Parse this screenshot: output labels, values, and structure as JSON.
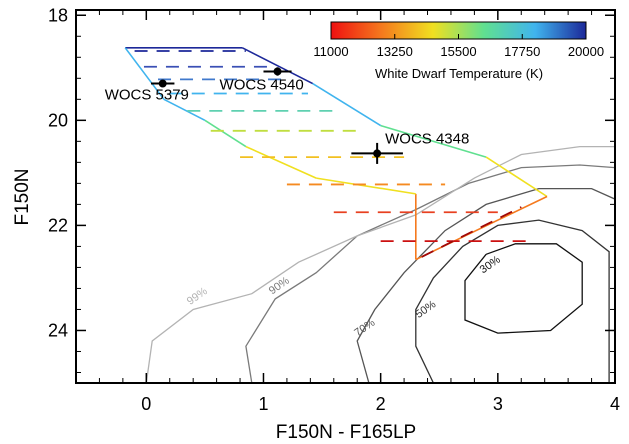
{
  "chart_data": {
    "type": "scatter",
    "xlabel": "F150N - F165LP",
    "ylabel": "F150N",
    "xlim": [
      -0.6,
      4.0
    ],
    "ylim": [
      25.0,
      17.9
    ],
    "y_inverted": true,
    "x_ticks": [
      "0",
      "1",
      "2",
      "3",
      "4"
    ],
    "x_tick_values": [
      0,
      1,
      2,
      3,
      4
    ],
    "y_ticks": [
      "18",
      "20",
      "22",
      "24"
    ],
    "y_tick_values": [
      18,
      20,
      22,
      24
    ],
    "grid": false,
    "colorbar": {
      "title": "White Dwarf Temperature (K)",
      "tick_labels": [
        "11000",
        "13250",
        "15500",
        "17750",
        "20000"
      ],
      "range": [
        11000,
        20000
      ],
      "colormap": [
        "#ee1111",
        "#f57a1e",
        "#f0e020",
        "#60e090",
        "#40b4ee",
        "#1c2899"
      ]
    },
    "stars": [
      {
        "name": "WOCS 5379",
        "x": 0.14,
        "y": 19.3,
        "xerr": 0.1,
        "yerr": 0.05
      },
      {
        "name": "WOCS 4540",
        "x": 1.12,
        "y": 19.07,
        "xerr": 0.12,
        "yerr": 0.08
      },
      {
        "name": "WOCS 4348",
        "x": 1.97,
        "y": 20.63,
        "xerr": 0.22,
        "yerr": 0.2
      }
    ],
    "model_grid": {
      "outline": [
        [
          -0.18,
          18.62
        ],
        [
          0.82,
          18.62
        ],
        [
          1.42,
          19.3
        ],
        [
          2.0,
          20.1
        ],
        [
          2.9,
          20.7
        ],
        [
          3.42,
          21.45
        ],
        [
          2.3,
          22.65
        ],
        [
          2.3,
          21.4
        ],
        [
          1.45,
          21.1
        ],
        [
          0.85,
          20.5
        ],
        [
          0.5,
          20.0
        ],
        [
          0.15,
          19.6
        ],
        [
          -0.18,
          18.62
        ]
      ],
      "dashed_lines": [
        {
          "x1": -0.1,
          "x2": 0.85,
          "y": 18.68,
          "color": "#1c2899"
        },
        {
          "x1": -0.02,
          "x2": 1.05,
          "y": 18.98,
          "color": "#3a4fb5"
        },
        {
          "x1": 0.1,
          "x2": 1.2,
          "y": 19.22,
          "color": "#4079cc"
        },
        {
          "x1": 0.2,
          "x2": 1.38,
          "y": 19.49,
          "color": "#40b4ee"
        },
        {
          "x1": 0.35,
          "x2": 1.6,
          "y": 19.82,
          "color": "#5fd0b0"
        },
        {
          "x1": 0.55,
          "x2": 1.85,
          "y": 20.2,
          "color": "#c0de40"
        },
        {
          "x1": 0.8,
          "x2": 2.2,
          "y": 20.7,
          "color": "#f2c020"
        },
        {
          "x1": 1.2,
          "x2": 2.55,
          "y": 21.22,
          "color": "#f58a20"
        },
        {
          "x1": 1.6,
          "x2": 3.0,
          "y": 21.75,
          "color": "#e84020"
        },
        {
          "x1": 2.0,
          "x2": 3.3,
          "y": 22.3,
          "color": "#cc1010"
        }
      ],
      "extra_dashed": [
        {
          "points": [
            [
              2.35,
              22.6
            ],
            [
              3.2,
              21.65
            ]
          ],
          "color": "#a00808"
        }
      ]
    },
    "contours": [
      {
        "label": "30%",
        "color": "#111111",
        "label_at": [
          2.95,
          22.8
        ],
        "points": [
          [
            2.9,
            22.55
          ],
          [
            3.15,
            22.35
          ],
          [
            3.5,
            22.35
          ],
          [
            3.72,
            22.7
          ],
          [
            3.72,
            23.5
          ],
          [
            3.45,
            24.0
          ],
          [
            3.0,
            24.05
          ],
          [
            2.72,
            23.8
          ],
          [
            2.72,
            23.05
          ],
          [
            2.9,
            22.55
          ]
        ]
      },
      {
        "label": "50%",
        "color": "#333333",
        "label_at": [
          2.4,
          23.65
        ],
        "points": [
          [
            2.45,
            25.0
          ],
          [
            2.3,
            24.3
          ],
          [
            2.3,
            23.6
          ],
          [
            2.45,
            23.0
          ],
          [
            2.7,
            22.4
          ],
          [
            3.0,
            22.0
          ],
          [
            3.35,
            21.9
          ],
          [
            3.72,
            22.1
          ],
          [
            3.95,
            22.5
          ],
          [
            3.95,
            25.0
          ]
        ]
      },
      {
        "label": "70%",
        "color": "#555555",
        "label_at": [
          1.88,
          24.0
        ],
        "points": [
          [
            1.9,
            25.0
          ],
          [
            1.8,
            24.2
          ],
          [
            1.95,
            23.6
          ],
          [
            2.2,
            22.9
          ],
          [
            2.55,
            22.1
          ],
          [
            2.9,
            21.6
          ],
          [
            3.35,
            21.3
          ],
          [
            3.8,
            21.3
          ],
          [
            4.0,
            21.5
          ]
        ]
      },
      {
        "label": "90%",
        "color": "#7a7a7a",
        "label_at": [
          1.15,
          23.2
        ],
        "points": [
          [
            0.9,
            25.0
          ],
          [
            0.85,
            24.3
          ],
          [
            1.1,
            23.4
          ],
          [
            1.45,
            22.9
          ],
          [
            1.8,
            22.2
          ],
          [
            2.3,
            21.7
          ],
          [
            2.75,
            21.2
          ],
          [
            3.2,
            20.9
          ],
          [
            3.7,
            20.85
          ],
          [
            4.0,
            20.9
          ]
        ]
      },
      {
        "label": "99%",
        "color": "#b3b3b3",
        "label_at": [
          0.45,
          23.4
        ],
        "points": [
          [
            0.0,
            25.0
          ],
          [
            0.05,
            24.2
          ],
          [
            0.4,
            23.6
          ],
          [
            0.9,
            23.3
          ],
          [
            1.3,
            22.7
          ],
          [
            1.8,
            22.2
          ],
          [
            2.3,
            21.8
          ],
          [
            2.8,
            21.1
          ],
          [
            3.2,
            20.65
          ],
          [
            3.7,
            20.5
          ],
          [
            4.0,
            20.5
          ]
        ]
      }
    ]
  }
}
